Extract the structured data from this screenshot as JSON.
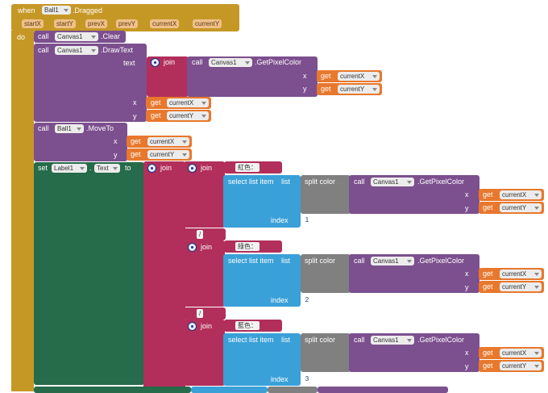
{
  "event": {
    "when": "when",
    "component": "Ball1",
    "event_name": ".Dragged",
    "do": "do",
    "params": [
      "startX",
      "startY",
      "prevX",
      "prevY",
      "currentX",
      "currentY"
    ]
  },
  "calls": {
    "call": "call",
    "canvas": "Canvas1",
    "clear": ".Clear",
    "drawtext": ".DrawText",
    "getpixel": ".GetPixelColor",
    "ball": "Ball1",
    "moveto": ".MoveTo"
  },
  "slots": {
    "text": "text",
    "x": "x",
    "y": "y",
    "index": "index",
    "to": "to"
  },
  "get": {
    "label": "get",
    "currentX": "currentX",
    "currentY": "currentY"
  },
  "text_ops": {
    "join": "join",
    "set": "set",
    "label1": "Label1",
    "text_prop": "Text",
    "dot": "."
  },
  "list_ops": {
    "select": "select list item",
    "list": "list",
    "split": "split color"
  },
  "strings": {
    "red": "紅色：",
    "slash": "/",
    "green": "綠色：",
    "blue": "藍色："
  },
  "indices": [
    "1",
    "2",
    "3"
  ],
  "colors": {
    "event": "#c59826",
    "component": "#7c4f8e",
    "label": "#266b4a",
    "text": "#b12f5a",
    "list": "#3aa0d8",
    "split": "#808080",
    "getter": "#e8782d"
  }
}
